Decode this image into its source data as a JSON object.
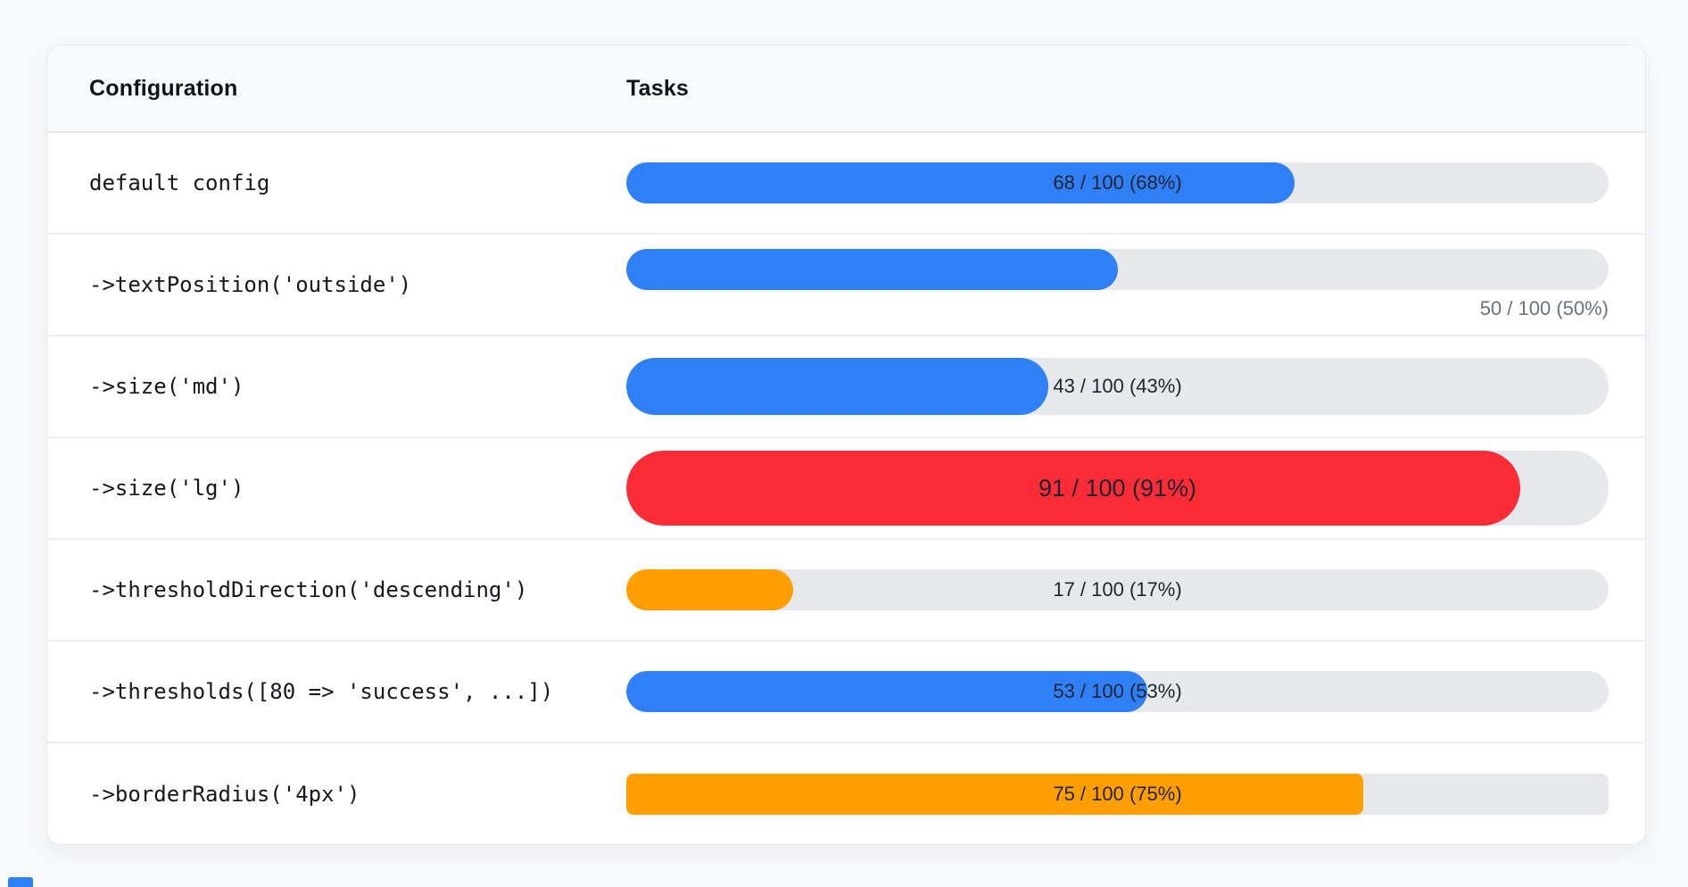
{
  "page": {
    "background_color": "#f8f9fa",
    "card_background": "#ffffff"
  },
  "colors": {
    "info_blue": "#2f7ff7",
    "danger_red": "#fb2c36",
    "warning_orange": "#ff9e00",
    "track_gray": "#e7e8ec",
    "outside_text_gray": "#6b7280",
    "inside_text_dark": "#1d2430"
  },
  "table": {
    "header": {
      "configuration": "Configuration",
      "tasks": "Tasks"
    },
    "rows": [
      {
        "config": "default config",
        "value": 68,
        "max": 100,
        "percent": 68,
        "label": "68 / 100 (68%)",
        "color": "#2f7ff7",
        "size": "default",
        "text_position": "center",
        "rounded": "full"
      },
      {
        "config": "->textPosition('outside')",
        "value": 50,
        "max": 100,
        "percent": 50,
        "label": "50 / 100 (50%)",
        "color": "#2f7ff7",
        "size": "default",
        "text_position": "outside",
        "rounded": "full"
      },
      {
        "config": "->size('md')",
        "value": 43,
        "max": 100,
        "percent": 43,
        "label": "43 / 100 (43%)",
        "color": "#2f7ff7",
        "size": "md",
        "text_position": "center",
        "rounded": "full"
      },
      {
        "config": "->size('lg')",
        "value": 91,
        "max": 100,
        "percent": 91,
        "label": "91 / 100 (91%)",
        "color": "#fb2c36",
        "size": "lg",
        "text_position": "center",
        "rounded": "full"
      },
      {
        "config": "->thresholdDirection('descending')",
        "value": 17,
        "max": 100,
        "percent": 17,
        "label": "17 / 100 (17%)",
        "color": "#ff9e00",
        "size": "default",
        "text_position": "center",
        "rounded": "full"
      },
      {
        "config": "->thresholds([80 => 'success', ...])",
        "value": 53,
        "max": 100,
        "percent": 53,
        "label": "53 / 100 (53%)",
        "color": "#2f7ff7",
        "size": "default",
        "text_position": "center",
        "rounded": "full"
      },
      {
        "config": "->borderRadius('4px')",
        "value": 75,
        "max": 100,
        "percent": 75,
        "label": "75 / 100 (75%)",
        "color": "#ff9e00",
        "size": "default",
        "text_position": "center",
        "rounded": "4px"
      }
    ]
  },
  "artifact": {
    "color": "#2f7ff7"
  }
}
